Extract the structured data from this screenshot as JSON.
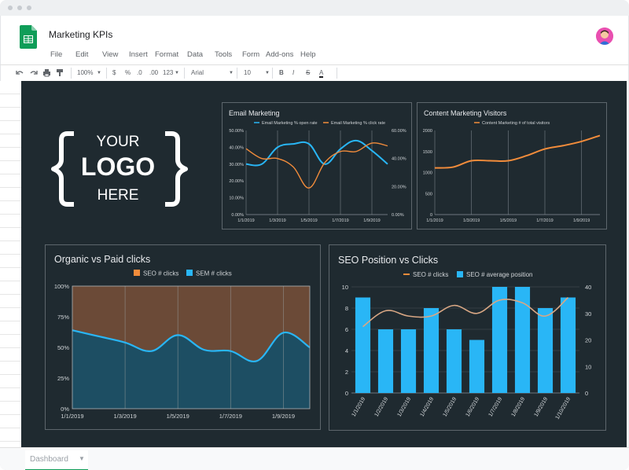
{
  "app": {
    "doc_title": "Marketing KPIs",
    "menu": [
      "File",
      "Edit",
      "View",
      "Insert",
      "Format",
      "Data",
      "Tools",
      "Form",
      "Add-ons",
      "Help"
    ],
    "toolbar": {
      "zoom": "100%",
      "currency": "$",
      "percent": "%",
      "dec_less": ".0",
      "dec_more": ".00",
      "more_formats": "123",
      "font": "Arial",
      "font_size": "10",
      "bold": "B",
      "italic": "I",
      "strike": "S",
      "text_color": "A"
    },
    "sheet_tab": "Dashboard",
    "colors": {
      "accent_green": "#0f9d58",
      "dashboard_bg": "#1f2a30"
    }
  },
  "logo": {
    "line1": "YOUR",
    "line2": "LOGO",
    "line3": "HERE"
  },
  "chart_data": [
    {
      "id": "email",
      "type": "line",
      "title": "Email Marketing",
      "x": [
        "1/1/2019",
        "1/2/2019",
        "1/3/2019",
        "1/4/2019",
        "1/5/2019",
        "1/6/2019",
        "1/7/2019",
        "1/8/2019",
        "1/9/2019",
        "1/10/2019"
      ],
      "x_tick_labels": [
        "1/1/2019",
        "1/3/2019",
        "1/5/2019",
        "1/7/2019",
        "1/9/2019"
      ],
      "series": [
        {
          "name": "Email Marketing % open rate",
          "color": "#29b6f6",
          "axis": "left",
          "values": [
            30,
            30,
            40,
            42,
            42,
            30,
            39,
            44,
            38,
            30
          ]
        },
        {
          "name": "Email Marketing % click rate",
          "color": "#f28c3b",
          "axis": "right",
          "values": [
            47,
            40,
            40,
            34,
            19,
            37,
            45,
            45,
            51,
            49
          ]
        }
      ],
      "left_axis": {
        "min": 0,
        "max": 50,
        "ticks": [
          "0.00%",
          "10.00%",
          "20.00%",
          "30.00%",
          "40.00%",
          "50.00%"
        ]
      },
      "right_axis": {
        "min": 0,
        "max": 60,
        "ticks": [
          "0.00%",
          "20.00%",
          "40.00%",
          "60.00%"
        ]
      },
      "legend": "top"
    },
    {
      "id": "content",
      "type": "line",
      "title": "Content Marketing Visitors",
      "x": [
        "1/1/2019",
        "1/2/2019",
        "1/3/2019",
        "1/4/2019",
        "1/5/2019",
        "1/6/2019",
        "1/7/2019",
        "1/8/2019",
        "1/9/2019",
        "1/10/2019"
      ],
      "x_tick_labels": [
        "1/1/2019",
        "1/3/2019",
        "1/5/2019",
        "1/7/2019",
        "1/9/2019"
      ],
      "series": [
        {
          "name": "Content Marketing # of total visitors",
          "color": "#f28c3b",
          "values": [
            1110,
            1130,
            1280,
            1280,
            1280,
            1400,
            1560,
            1640,
            1740,
            1880
          ]
        }
      ],
      "y_axis": {
        "min": 0,
        "max": 2000,
        "ticks": [
          "0",
          "500",
          "1000",
          "1500",
          "2000"
        ]
      },
      "legend": "top"
    },
    {
      "id": "organic",
      "type": "area",
      "stacked_percent": true,
      "title": "Organic vs Paid clicks",
      "x": [
        "1/1/2019",
        "1/2/2019",
        "1/3/2019",
        "1/4/2019",
        "1/5/2019",
        "1/6/2019",
        "1/7/2019",
        "1/8/2019",
        "1/9/2019",
        "1/10/2019"
      ],
      "x_tick_labels": [
        "1/1/2019",
        "1/3/2019",
        "1/5/2019",
        "1/7/2019",
        "1/9/2019"
      ],
      "series": [
        {
          "name": "SEO # clicks",
          "color": "#f28c3b",
          "values": [
            36,
            41,
            46,
            53,
            40,
            52,
            53,
            61,
            38,
            50
          ]
        },
        {
          "name": "SEM # clicks",
          "color": "#29b6f6",
          "values": [
            64,
            59,
            54,
            47,
            60,
            48,
            47,
            39,
            62,
            50
          ]
        }
      ],
      "y_axis": {
        "min": 0,
        "max": 100,
        "ticks": [
          "0%",
          "25%",
          "50%",
          "75%",
          "100%"
        ]
      },
      "legend": "top"
    },
    {
      "id": "seo",
      "type": "bar",
      "title": "SEO Position vs Clicks",
      "categories": [
        "1/1/2019",
        "1/2/2019",
        "1/3/2019",
        "1/4/2019",
        "1/5/2019",
        "1/6/2019",
        "1/7/2019",
        "1/8/2019",
        "1/9/2019",
        "1/10/2019"
      ],
      "series": [
        {
          "name": "SEO # clicks",
          "color": "#f28c3b",
          "kind": "line",
          "axis": "right",
          "values": [
            25,
            31,
            29,
            29,
            33,
            30,
            35,
            34,
            29,
            36
          ]
        },
        {
          "name": "SEO # average position",
          "color": "#29b6f6",
          "kind": "bar",
          "axis": "left",
          "values": [
            9,
            6,
            6,
            8,
            6,
            5,
            10,
            10,
            8,
            9
          ]
        }
      ],
      "left_axis": {
        "min": 0,
        "max": 10,
        "ticks": [
          "0",
          "2",
          "4",
          "6",
          "8",
          "10"
        ]
      },
      "right_axis": {
        "min": 0,
        "max": 40,
        "ticks": [
          "0",
          "10",
          "20",
          "30",
          "40"
        ]
      },
      "legend": "top"
    }
  ]
}
